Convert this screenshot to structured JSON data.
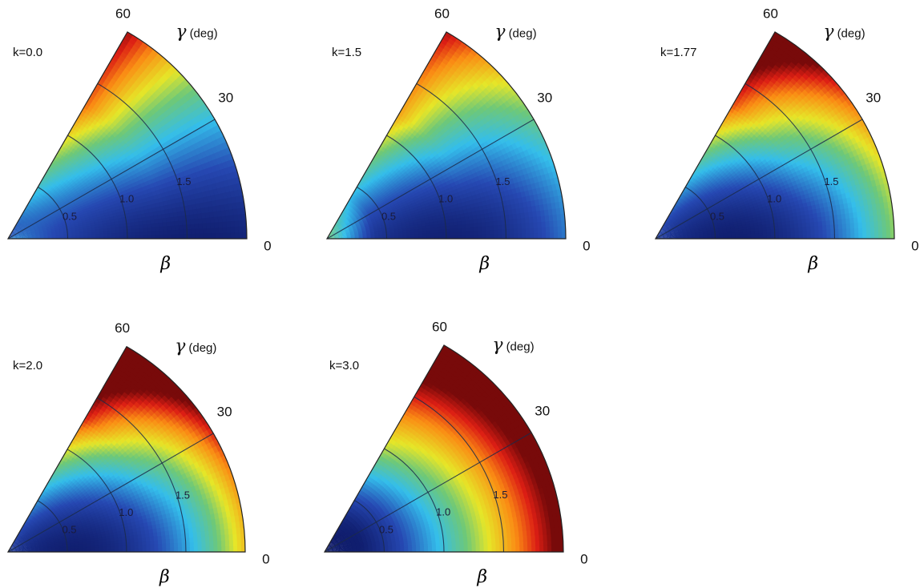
{
  "chart_data": [
    {
      "type": "heatmap",
      "coordinates": "polar",
      "title": "k=0.0",
      "theta_label": "γ (deg)",
      "r_label": "β",
      "theta_ticks": [
        "0",
        "30",
        "60"
      ],
      "r_ticks": [
        "0.5",
        "1.0",
        "1.5"
      ],
      "theta_range": [
        0,
        60
      ],
      "r_range": [
        0,
        2.0
      ],
      "surface": {
        "min_at": {
          "beta": 1.6,
          "gamma": 0
        },
        "low": 0.0,
        "high": 1.0,
        "note_levels": "dark red at beta 2, gamma 60"
      },
      "kind": "triaxial_min_at_prolate"
    },
    {
      "type": "heatmap",
      "coordinates": "polar",
      "title": "k=1.5",
      "theta_label": "γ (deg)",
      "r_label": "β",
      "theta_ticks": [
        "0",
        "30",
        "60"
      ],
      "r_ticks": [
        "0.5",
        "1.0",
        "1.5"
      ],
      "theta_range": [
        0,
        60
      ],
      "r_range": [
        0,
        2.0
      ],
      "kind": "min_near_beta_1"
    },
    {
      "type": "heatmap",
      "coordinates": "polar",
      "title": "k=1.77",
      "theta_label": "γ (deg)",
      "r_label": "β",
      "theta_ticks": [
        "0",
        "30",
        "60"
      ],
      "r_ticks": [
        "0.5",
        "1.0",
        "1.5"
      ],
      "theta_range": [
        0,
        60
      ],
      "r_range": [
        0,
        2.0
      ],
      "kind": "min_near_beta_0_7"
    },
    {
      "type": "heatmap",
      "coordinates": "polar",
      "title": "k=2.0",
      "theta_label": "γ (deg)",
      "r_label": "β",
      "theta_ticks": [
        "0",
        "30",
        "60"
      ],
      "r_ticks": [
        "0.5",
        "1.0",
        "1.5"
      ],
      "theta_range": [
        0,
        60
      ],
      "r_range": [
        0,
        2.0
      ],
      "kind": "min_near_beta_0_6"
    },
    {
      "type": "heatmap",
      "coordinates": "polar",
      "title": "k=3.0",
      "theta_label": "γ (deg)",
      "r_label": "β",
      "theta_ticks": [
        "0",
        "30",
        "60"
      ],
      "r_ticks": [
        "0.5",
        "1.0",
        "1.5"
      ],
      "theta_range": [
        0,
        60
      ],
      "r_range": [
        0,
        2.0
      ],
      "kind": "min_near_beta_0_4"
    }
  ]
}
